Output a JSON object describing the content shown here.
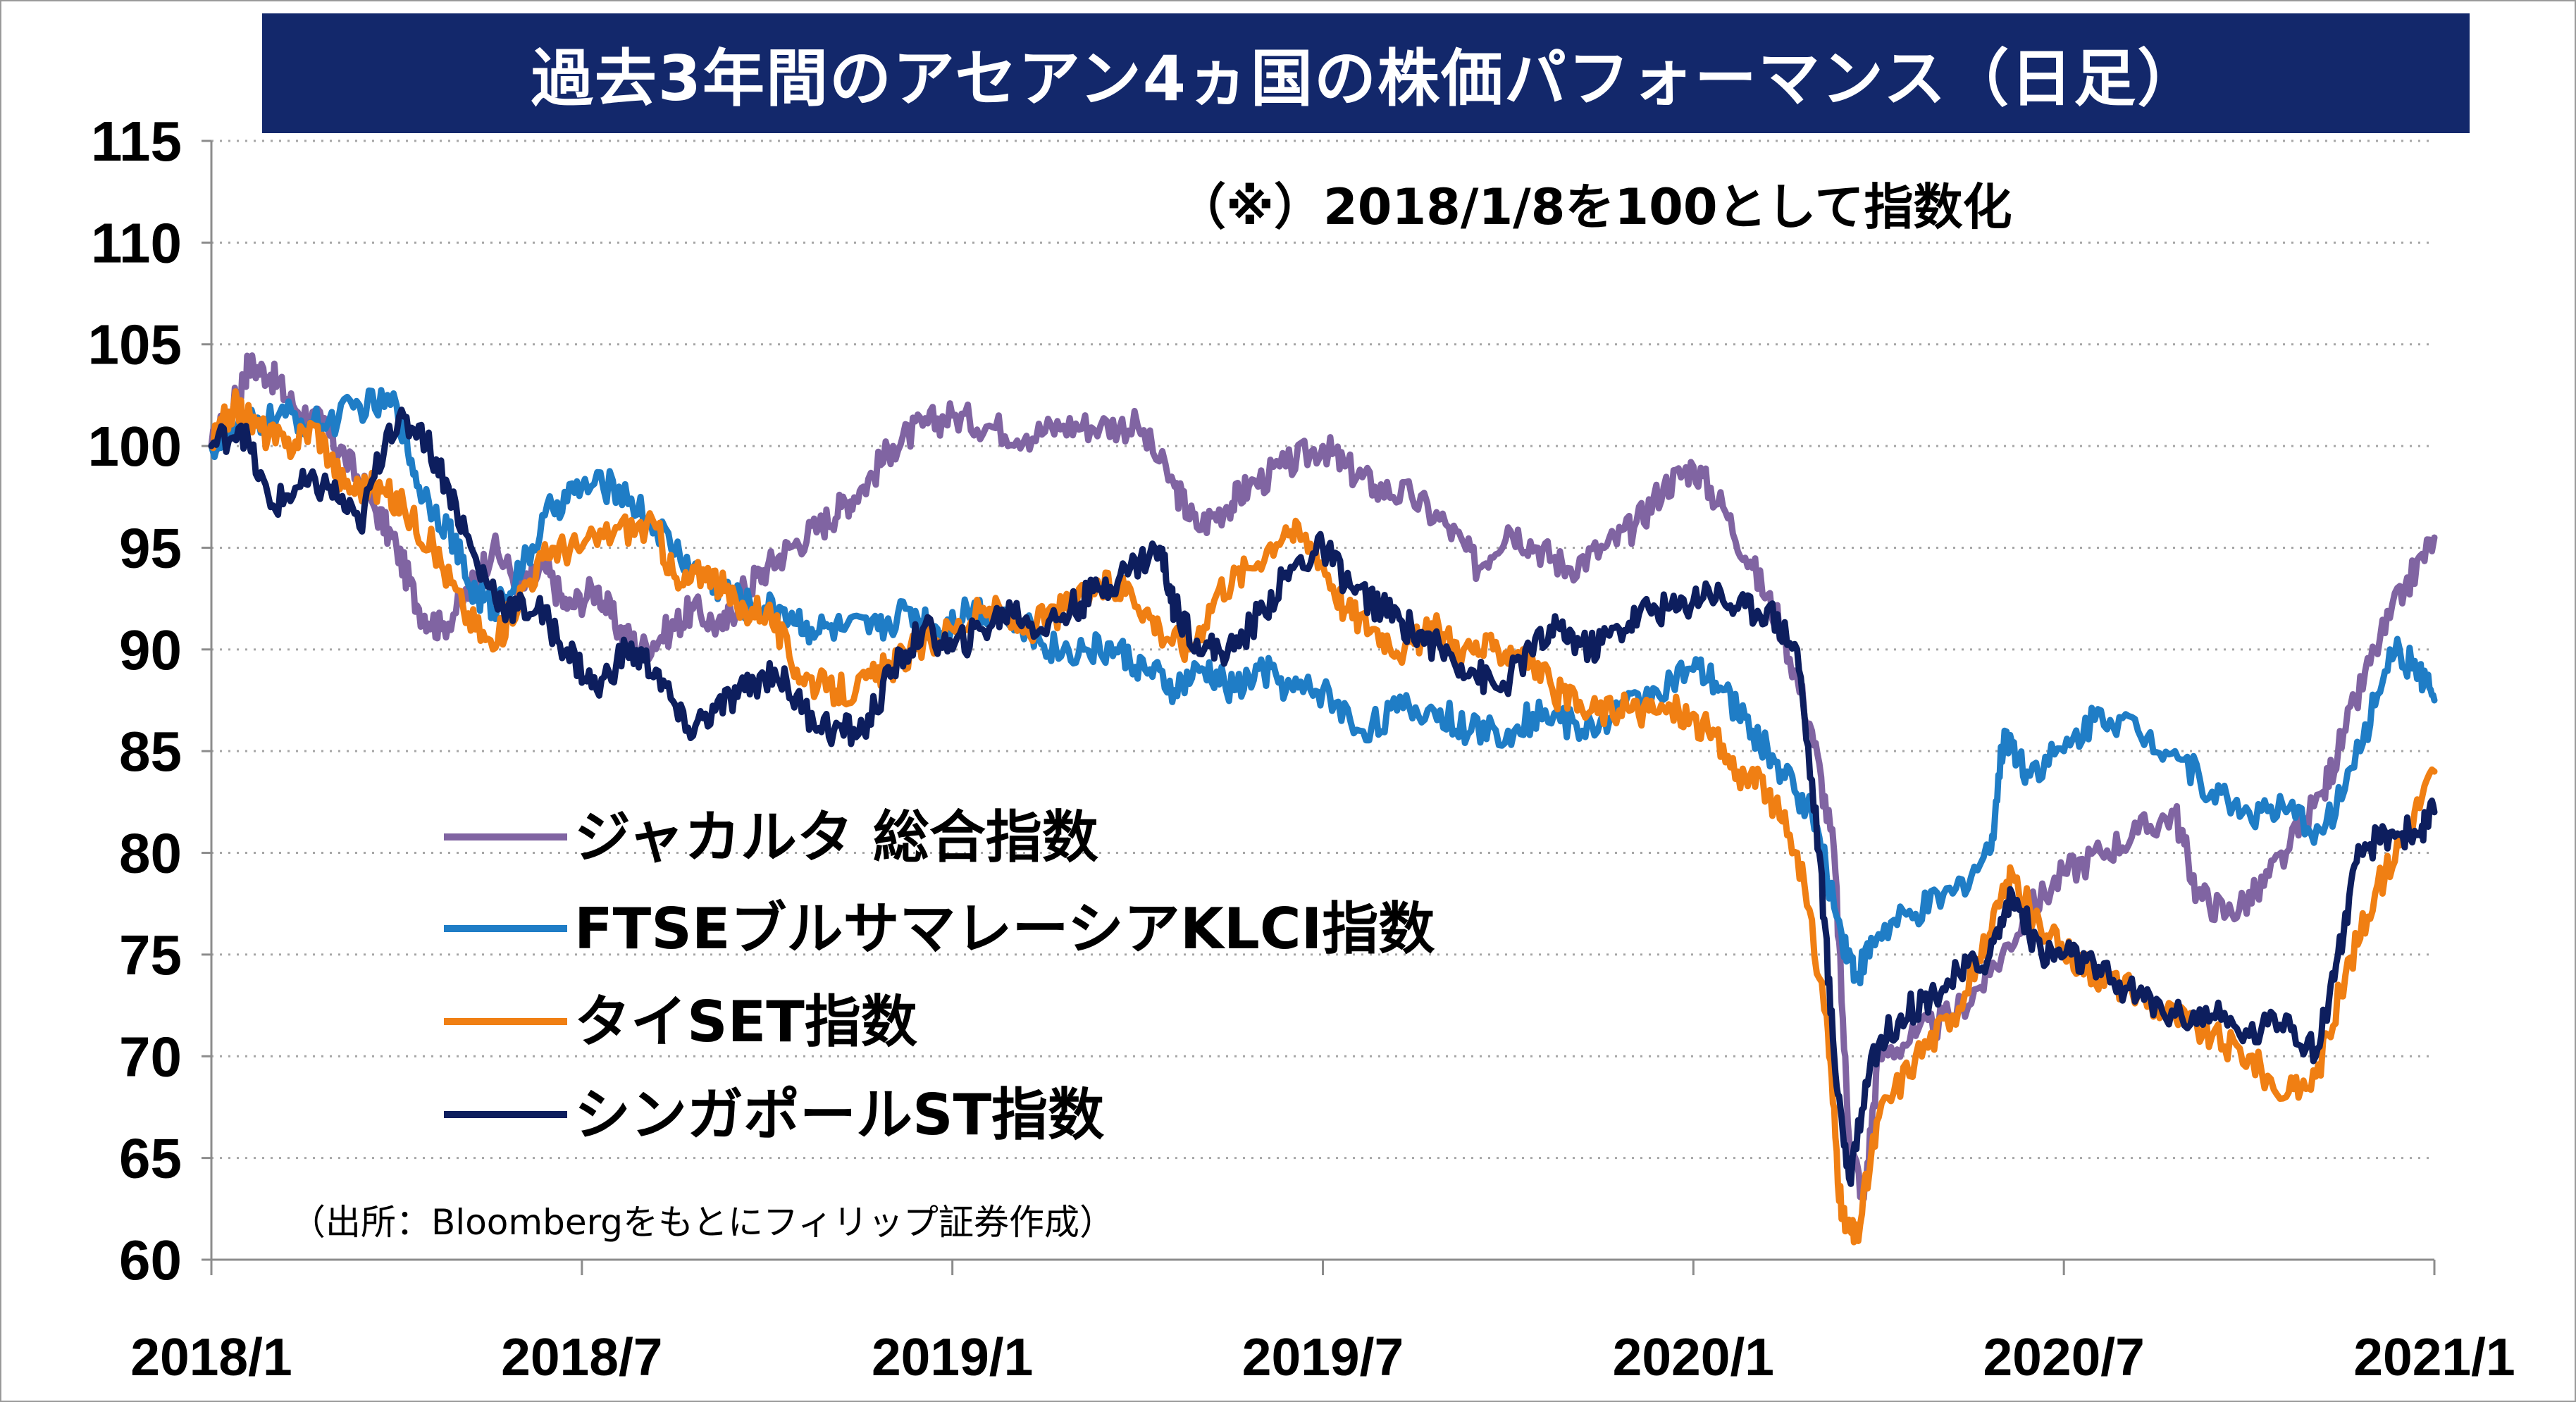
{
  "chart_data": {
    "type": "line",
    "title": "過去3年間のアセアン4ヵ国の株価パフォーマンス（日足）",
    "note": "（※）2018/1/8を100として指数化",
    "source": "（出所：Bloombergをもとにフィリップ証券作成）",
    "x_ticks": [
      "2018/1",
      "2018/7",
      "2019/1",
      "2019/7",
      "2020/1",
      "2020/7",
      "2021/1"
    ],
    "y_ticks": [
      60,
      65,
      70,
      75,
      80,
      85,
      90,
      95,
      100,
      105,
      110,
      115
    ],
    "ylim": [
      60,
      115
    ],
    "xlim": [
      2018.0,
      2021.0
    ],
    "grid": "horizontal-dotted",
    "legend_position": "lower-left",
    "series": [
      {
        "name": "ジャカルタ 総合指数",
        "color": "#8064a2",
        "points": [
          [
            2018.0,
            100
          ],
          [
            2018.03,
            102
          ],
          [
            2018.05,
            104
          ],
          [
            2018.08,
            103.5
          ],
          [
            2018.11,
            102
          ],
          [
            2018.15,
            101
          ],
          [
            2018.18,
            99.5
          ],
          [
            2018.22,
            97
          ],
          [
            2018.25,
            95
          ],
          [
            2018.28,
            92
          ],
          [
            2018.31,
            91
          ],
          [
            2018.35,
            93
          ],
          [
            2018.38,
            95
          ],
          [
            2018.42,
            93
          ],
          [
            2018.45,
            94
          ],
          [
            2018.48,
            92
          ],
          [
            2018.52,
            93
          ],
          [
            2018.55,
            91
          ],
          [
            2018.58,
            90
          ],
          [
            2018.62,
            91
          ],
          [
            2018.65,
            92
          ],
          [
            2018.69,
            91
          ],
          [
            2018.72,
            93
          ],
          [
            2018.75,
            94
          ],
          [
            2018.78,
            95
          ],
          [
            2018.82,
            96
          ],
          [
            2018.85,
            97
          ],
          [
            2018.88,
            98
          ],
          [
            2018.92,
            100
          ],
          [
            2018.96,
            101
          ],
          [
            2019.0,
            101.5
          ],
          [
            2019.05,
            101
          ],
          [
            2019.1,
            100.5
          ],
          [
            2019.15,
            101
          ],
          [
            2019.2,
            101
          ],
          [
            2019.25,
            101
          ],
          [
            2019.3,
            98
          ],
          [
            2019.33,
            96
          ],
          [
            2019.37,
            97
          ],
          [
            2019.4,
            98
          ],
          [
            2019.45,
            99
          ],
          [
            2019.5,
            100
          ],
          [
            2019.53,
            99
          ],
          [
            2019.57,
            98
          ],
          [
            2019.62,
            97.5
          ],
          [
            2019.67,
            96
          ],
          [
            2019.71,
            94
          ],
          [
            2019.75,
            96
          ],
          [
            2019.79,
            95
          ],
          [
            2019.83,
            94
          ],
          [
            2019.88,
            95
          ],
          [
            2019.92,
            96
          ],
          [
            2019.96,
            98
          ],
          [
            2020.0,
            99
          ],
          [
            2020.04,
            97
          ],
          [
            2020.08,
            94
          ],
          [
            2020.12,
            91
          ],
          [
            2020.16,
            86
          ],
          [
            2020.19,
            80
          ],
          [
            2020.21,
            66
          ],
          [
            2020.23,
            63
          ],
          [
            2020.25,
            70
          ],
          [
            2020.3,
            71
          ],
          [
            2020.35,
            72
          ],
          [
            2020.4,
            74
          ],
          [
            2020.45,
            77
          ],
          [
            2020.5,
            79
          ],
          [
            2020.55,
            80
          ],
          [
            2020.6,
            81
          ],
          [
            2020.65,
            82
          ],
          [
            2020.68,
            78
          ],
          [
            2020.72,
            77
          ],
          [
            2020.76,
            78
          ],
          [
            2020.8,
            80
          ],
          [
            2020.85,
            83
          ],
          [
            2020.88,
            86
          ],
          [
            2020.92,
            90
          ],
          [
            2020.96,
            93
          ],
          [
            2021.0,
            95.5
          ]
        ]
      },
      {
        "name": "FTSEブルサマレーシアKLCI指数",
        "color": "#1f7dc6",
        "points": [
          [
            2018.0,
            100
          ],
          [
            2018.05,
            101
          ],
          [
            2018.1,
            101.5
          ],
          [
            2018.15,
            101
          ],
          [
            2018.2,
            102
          ],
          [
            2018.25,
            102
          ],
          [
            2018.28,
            98
          ],
          [
            2018.32,
            96
          ],
          [
            2018.35,
            93
          ],
          [
            2018.38,
            92
          ],
          [
            2018.42,
            94
          ],
          [
            2018.46,
            97
          ],
          [
            2018.5,
            98
          ],
          [
            2018.55,
            98
          ],
          [
            2018.6,
            96
          ],
          [
            2018.65,
            94
          ],
          [
            2018.69,
            93
          ],
          [
            2018.73,
            92
          ],
          [
            2018.77,
            92
          ],
          [
            2018.81,
            91
          ],
          [
            2018.85,
            91
          ],
          [
            2018.9,
            91
          ],
          [
            2018.94,
            92
          ],
          [
            2018.98,
            91
          ],
          [
            2019.02,
            92
          ],
          [
            2019.06,
            92
          ],
          [
            2019.1,
            91
          ],
          [
            2019.14,
            90
          ],
          [
            2019.18,
            90
          ],
          [
            2019.22,
            90
          ],
          [
            2019.26,
            89
          ],
          [
            2019.3,
            88
          ],
          [
            2019.34,
            89
          ],
          [
            2019.38,
            88
          ],
          [
            2019.42,
            89
          ],
          [
            2019.46,
            88
          ],
          [
            2019.5,
            88
          ],
          [
            2019.55,
            86
          ],
          [
            2019.6,
            87
          ],
          [
            2019.65,
            87
          ],
          [
            2019.7,
            86
          ],
          [
            2019.75,
            86
          ],
          [
            2019.8,
            87
          ],
          [
            2019.85,
            86
          ],
          [
            2019.9,
            87
          ],
          [
            2019.95,
            88
          ],
          [
            2020.0,
            89
          ],
          [
            2020.04,
            88
          ],
          [
            2020.08,
            86
          ],
          [
            2020.12,
            84
          ],
          [
            2020.16,
            82
          ],
          [
            2020.2,
            76
          ],
          [
            2020.22,
            74
          ],
          [
            2020.25,
            76
          ],
          [
            2020.3,
            77
          ],
          [
            2020.35,
            78
          ],
          [
            2020.4,
            80
          ],
          [
            2020.42,
            86
          ],
          [
            2020.45,
            84
          ],
          [
            2020.5,
            85
          ],
          [
            2020.55,
            87
          ],
          [
            2020.6,
            86
          ],
          [
            2020.65,
            85
          ],
          [
            2020.7,
            83
          ],
          [
            2020.75,
            82
          ],
          [
            2020.8,
            82
          ],
          [
            2020.85,
            81
          ],
          [
            2020.9,
            85
          ],
          [
            2020.94,
            90
          ],
          [
            2020.98,
            89
          ],
          [
            2021.0,
            87.5
          ]
        ]
      },
      {
        "name": "タイSET指数",
        "color": "#f07f13",
        "points": [
          [
            2018.0,
            100
          ],
          [
            2018.03,
            102
          ],
          [
            2018.06,
            101
          ],
          [
            2018.1,
            100
          ],
          [
            2018.14,
            101
          ],
          [
            2018.18,
            98
          ],
          [
            2018.22,
            98
          ],
          [
            2018.26,
            97
          ],
          [
            2018.3,
            95
          ],
          [
            2018.34,
            92
          ],
          [
            2018.38,
            90
          ],
          [
            2018.42,
            93
          ],
          [
            2018.46,
            95
          ],
          [
            2018.5,
            95
          ],
          [
            2018.55,
            96
          ],
          [
            2018.6,
            96
          ],
          [
            2018.63,
            93
          ],
          [
            2018.67,
            94
          ],
          [
            2018.71,
            92
          ],
          [
            2018.75,
            92
          ],
          [
            2018.79,
            89
          ],
          [
            2018.83,
            88
          ],
          [
            2018.87,
            88
          ],
          [
            2018.91,
            89
          ],
          [
            2018.95,
            90
          ],
          [
            2019.0,
            91
          ],
          [
            2019.05,
            92
          ],
          [
            2019.1,
            91
          ],
          [
            2019.15,
            92
          ],
          [
            2019.2,
            93
          ],
          [
            2019.24,
            93
          ],
          [
            2019.28,
            91
          ],
          [
            2019.32,
            90
          ],
          [
            2019.36,
            93
          ],
          [
            2019.4,
            94
          ],
          [
            2019.45,
            96
          ],
          [
            2019.49,
            95
          ],
          [
            2019.53,
            92
          ],
          [
            2019.57,
            91
          ],
          [
            2019.61,
            90
          ],
          [
            2019.65,
            91
          ],
          [
            2019.69,
            90
          ],
          [
            2019.73,
            90
          ],
          [
            2019.77,
            90
          ],
          [
            2019.81,
            88
          ],
          [
            2019.85,
            87
          ],
          [
            2019.9,
            87
          ],
          [
            2019.94,
            87
          ],
          [
            2019.98,
            87
          ],
          [
            2020.02,
            86
          ],
          [
            2020.06,
            84
          ],
          [
            2020.1,
            83
          ],
          [
            2020.14,
            80
          ],
          [
            2020.18,
            72
          ],
          [
            2020.2,
            62
          ],
          [
            2020.22,
            61
          ],
          [
            2020.25,
            67
          ],
          [
            2020.3,
            70
          ],
          [
            2020.35,
            72
          ],
          [
            2020.4,
            76
          ],
          [
            2020.43,
            79
          ],
          [
            2020.47,
            76
          ],
          [
            2020.51,
            75
          ],
          [
            2020.55,
            74
          ],
          [
            2020.6,
            73
          ],
          [
            2020.65,
            72
          ],
          [
            2020.7,
            71
          ],
          [
            2020.75,
            70
          ],
          [
            2020.8,
            68
          ],
          [
            2020.84,
            69
          ],
          [
            2020.88,
            74
          ],
          [
            2020.92,
            78
          ],
          [
            2020.96,
            81
          ],
          [
            2021.0,
            84
          ]
        ]
      },
      {
        "name": "シンガポールST指数",
        "color": "#0d1e5e",
        "points": [
          [
            2018.0,
            100
          ],
          [
            2018.04,
            101
          ],
          [
            2018.08,
            97
          ],
          [
            2018.12,
            98
          ],
          [
            2018.16,
            98
          ],
          [
            2018.2,
            96
          ],
          [
            2018.24,
            101
          ],
          [
            2018.28,
            101
          ],
          [
            2018.32,
            98
          ],
          [
            2018.36,
            94
          ],
          [
            2018.4,
            92
          ],
          [
            2018.44,
            92
          ],
          [
            2018.48,
            90
          ],
          [
            2018.52,
            88
          ],
          [
            2018.56,
            90
          ],
          [
            2018.6,
            89
          ],
          [
            2018.64,
            86
          ],
          [
            2018.68,
            87
          ],
          [
            2018.72,
            88
          ],
          [
            2018.76,
            89
          ],
          [
            2018.8,
            87
          ],
          [
            2018.84,
            86
          ],
          [
            2018.88,
            86
          ],
          [
            2018.92,
            89
          ],
          [
            2018.96,
            91
          ],
          [
            2019.0,
            90
          ],
          [
            2019.04,
            91
          ],
          [
            2019.08,
            92
          ],
          [
            2019.12,
            91
          ],
          [
            2019.16,
            92
          ],
          [
            2019.2,
            93
          ],
          [
            2019.24,
            94
          ],
          [
            2019.28,
            95
          ],
          [
            2019.3,
            92
          ],
          [
            2019.34,
            90
          ],
          [
            2019.38,
            90
          ],
          [
            2019.42,
            92
          ],
          [
            2019.46,
            94
          ],
          [
            2019.5,
            95
          ],
          [
            2019.54,
            93
          ],
          [
            2019.58,
            92
          ],
          [
            2019.62,
            91
          ],
          [
            2019.66,
            90
          ],
          [
            2019.7,
            89
          ],
          [
            2019.74,
            88
          ],
          [
            2019.78,
            90
          ],
          [
            2019.82,
            91
          ],
          [
            2019.86,
            90
          ],
          [
            2019.9,
            91
          ],
          [
            2019.94,
            92
          ],
          [
            2019.98,
            92
          ],
          [
            2020.02,
            93
          ],
          [
            2020.06,
            92
          ],
          [
            2020.1,
            92
          ],
          [
            2020.14,
            90
          ],
          [
            2020.17,
            80
          ],
          [
            2020.19,
            70
          ],
          [
            2020.21,
            64
          ],
          [
            2020.24,
            70
          ],
          [
            2020.28,
            72
          ],
          [
            2020.32,
            73
          ],
          [
            2020.36,
            74
          ],
          [
            2020.4,
            75
          ],
          [
            2020.43,
            78
          ],
          [
            2020.47,
            75
          ],
          [
            2020.51,
            75
          ],
          [
            2020.55,
            74
          ],
          [
            2020.6,
            73
          ],
          [
            2020.65,
            72
          ],
          [
            2020.7,
            72
          ],
          [
            2020.75,
            71
          ],
          [
            2020.8,
            72
          ],
          [
            2020.84,
            70
          ],
          [
            2020.87,
            75
          ],
          [
            2020.9,
            80
          ],
          [
            2020.94,
            81
          ],
          [
            2020.98,
            81
          ],
          [
            2021.0,
            82
          ]
        ]
      }
    ]
  }
}
